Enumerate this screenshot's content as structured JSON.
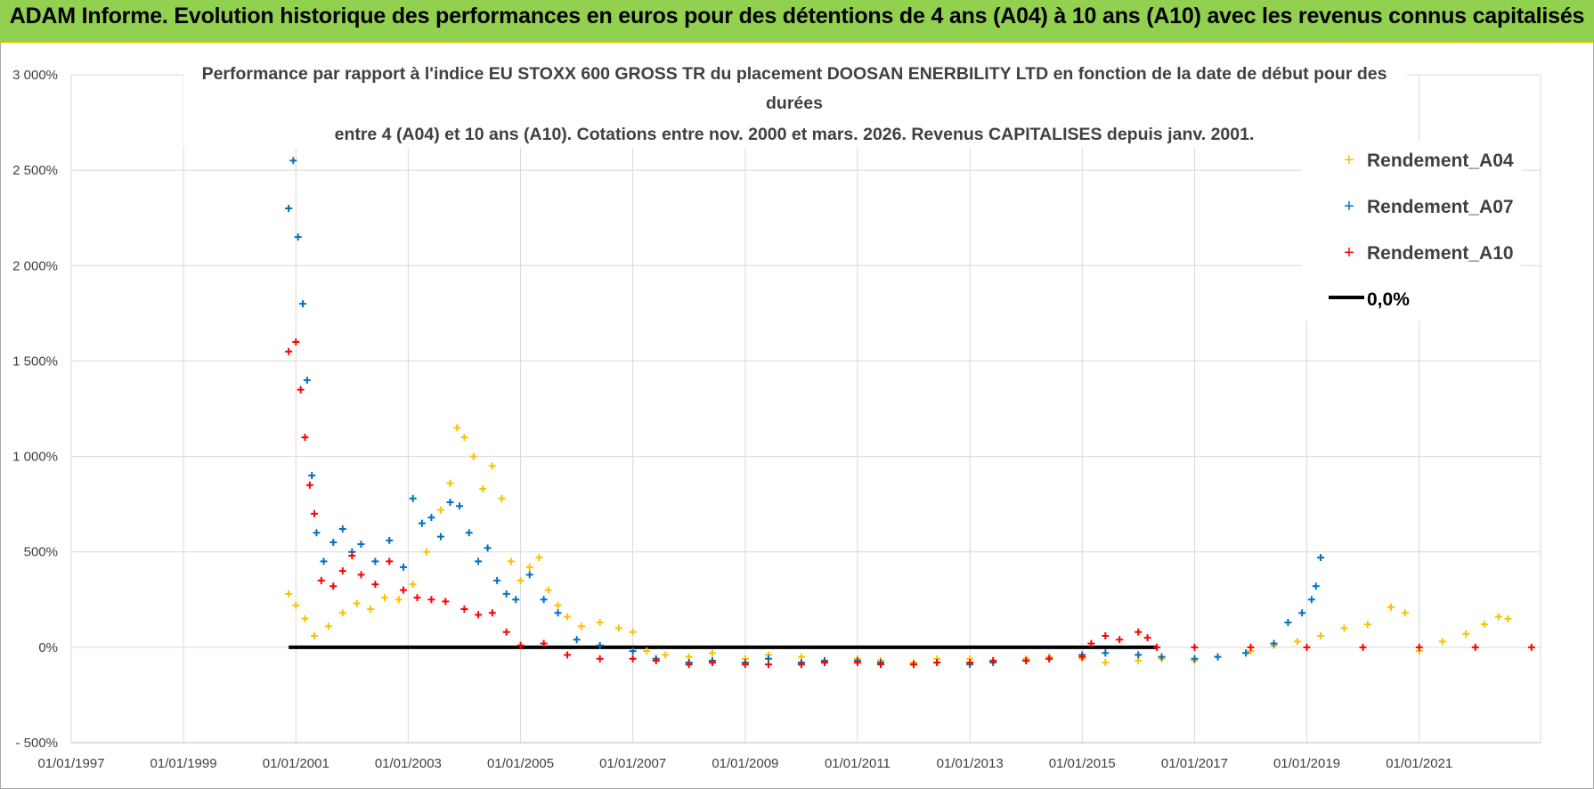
{
  "header": {
    "title": "ADAM Informe. Evolution historique des performances en euros pour des détentions de 4 ans (A04) à 10 ans (A10) avec les revenus connus capitalisés",
    "bg_color": "#92d050"
  },
  "chart_data": {
    "type": "scatter",
    "title_lines": [
      "Performance par rapport à l'indice EU STOXX 600 GROSS TR  du placement DOOSAN ENERBILITY LTD en fonction de la date de début pour des",
      "durées",
      "entre 4 (A04) et 10 ans (A10).  Cotations entre nov. 2000 et mars. 2026. Revenus CAPITALISES depuis janv. 2001."
    ],
    "xlabel": "",
    "ylabel": "",
    "x_ticks": [
      "01/01/1997",
      "01/01/1999",
      "01/01/2001",
      "01/01/2003",
      "01/01/2005",
      "01/01/2007",
      "01/01/2009",
      "01/01/2011",
      "01/01/2013",
      "01/01/2015",
      "01/01/2017",
      "01/01/2019",
      "01/01/2021"
    ],
    "xlim": [
      "1997-01-01",
      "2023-03-01"
    ],
    "y_ticks": [
      "3 000%",
      "2 500%",
      "2 000%",
      "1 500%",
      "1 000%",
      "500%",
      "0%",
      "- 500%"
    ],
    "ylim": [
      -500,
      3000
    ],
    "grid": true,
    "legend_position": "top-right",
    "series": [
      {
        "name": "Rendement_A04",
        "color": "#ffc000",
        "marker": "plus",
        "points": [
          [
            "2000-11-15",
            280
          ],
          [
            "2001-01-01",
            220
          ],
          [
            "2001-03-01",
            150
          ],
          [
            "2001-05-01",
            60
          ],
          [
            "2001-08-01",
            110
          ],
          [
            "2001-11-01",
            180
          ],
          [
            "2002-02-01",
            230
          ],
          [
            "2002-05-01",
            200
          ],
          [
            "2002-08-01",
            260
          ],
          [
            "2002-11-01",
            250
          ],
          [
            "2003-02-01",
            330
          ],
          [
            "2003-05-01",
            500
          ],
          [
            "2003-08-01",
            720
          ],
          [
            "2003-10-01",
            860
          ],
          [
            "2003-11-15",
            1150
          ],
          [
            "2004-01-01",
            1100
          ],
          [
            "2004-03-01",
            1000
          ],
          [
            "2004-05-01",
            830
          ],
          [
            "2004-07-01",
            950
          ],
          [
            "2004-09-01",
            780
          ],
          [
            "2004-11-01",
            450
          ],
          [
            "2005-01-01",
            350
          ],
          [
            "2005-03-01",
            420
          ],
          [
            "2005-05-01",
            470
          ],
          [
            "2005-07-01",
            300
          ],
          [
            "2005-09-01",
            220
          ],
          [
            "2005-11-01",
            160
          ],
          [
            "2006-02-01",
            110
          ],
          [
            "2006-06-01",
            130
          ],
          [
            "2006-10-01",
            100
          ],
          [
            "2007-01-01",
            80
          ],
          [
            "2007-04-01",
            -20
          ],
          [
            "2007-08-01",
            -40
          ],
          [
            "2008-01-01",
            -50
          ],
          [
            "2008-06-01",
            -30
          ],
          [
            "2009-01-01",
            -60
          ],
          [
            "2009-06-01",
            -40
          ],
          [
            "2010-01-01",
            -50
          ],
          [
            "2010-06-01",
            -70
          ],
          [
            "2011-01-01",
            -60
          ],
          [
            "2011-06-01",
            -70
          ],
          [
            "2012-01-01",
            -80
          ],
          [
            "2012-06-01",
            -60
          ],
          [
            "2013-01-01",
            -60
          ],
          [
            "2013-06-01",
            -70
          ],
          [
            "2014-01-01",
            -60
          ],
          [
            "2014-06-01",
            -50
          ],
          [
            "2015-01-01",
            -60
          ],
          [
            "2015-06-01",
            -80
          ],
          [
            "2016-01-01",
            -70
          ],
          [
            "2016-06-01",
            -60
          ],
          [
            "2017-01-01",
            -70
          ],
          [
            "2017-06-01",
            -50
          ],
          [
            "2018-01-01",
            -20
          ],
          [
            "2018-06-01",
            10
          ],
          [
            "2018-11-01",
            30
          ],
          [
            "2019-04-01",
            60
          ],
          [
            "2019-09-01",
            100
          ],
          [
            "2020-02-01",
            120
          ],
          [
            "2020-07-01",
            210
          ],
          [
            "2020-10-01",
            180
          ],
          [
            "2021-01-01",
            -20
          ],
          [
            "2021-06-01",
            30
          ],
          [
            "2021-11-01",
            70
          ],
          [
            "2022-03-01",
            120
          ],
          [
            "2022-06-01",
            160
          ],
          [
            "2022-08-01",
            150
          ]
        ]
      },
      {
        "name": "Rendement_A07",
        "color": "#0070c0",
        "marker": "plus",
        "points": [
          [
            "2000-11-15",
            2300
          ],
          [
            "2000-12-15",
            2550
          ],
          [
            "2001-01-15",
            2150
          ],
          [
            "2001-02-15",
            1800
          ],
          [
            "2001-03-15",
            1400
          ],
          [
            "2001-04-15",
            900
          ],
          [
            "2001-05-15",
            600
          ],
          [
            "2001-07-01",
            450
          ],
          [
            "2001-09-01",
            550
          ],
          [
            "2001-11-01",
            620
          ],
          [
            "2002-01-01",
            500
          ],
          [
            "2002-03-01",
            540
          ],
          [
            "2002-06-01",
            450
          ],
          [
            "2002-09-01",
            560
          ],
          [
            "2002-12-01",
            420
          ],
          [
            "2003-02-01",
            780
          ],
          [
            "2003-04-01",
            650
          ],
          [
            "2003-06-01",
            680
          ],
          [
            "2003-08-01",
            580
          ],
          [
            "2003-10-01",
            760
          ],
          [
            "2003-12-01",
            740
          ],
          [
            "2004-02-01",
            600
          ],
          [
            "2004-04-01",
            450
          ],
          [
            "2004-06-01",
            520
          ],
          [
            "2004-08-01",
            350
          ],
          [
            "2004-10-01",
            280
          ],
          [
            "2004-12-01",
            250
          ],
          [
            "2005-03-01",
            380
          ],
          [
            "2005-06-01",
            250
          ],
          [
            "2005-09-01",
            180
          ],
          [
            "2006-01-01",
            40
          ],
          [
            "2006-06-01",
            10
          ],
          [
            "2007-01-01",
            -20
          ],
          [
            "2007-06-01",
            -60
          ],
          [
            "2008-01-01",
            -80
          ],
          [
            "2008-06-01",
            -70
          ],
          [
            "2009-01-01",
            -80
          ],
          [
            "2009-06-01",
            -60
          ],
          [
            "2010-01-01",
            -80
          ],
          [
            "2010-06-01",
            -70
          ],
          [
            "2011-01-01",
            -70
          ],
          [
            "2011-06-01",
            -80
          ],
          [
            "2012-01-01",
            -90
          ],
          [
            "2012-06-01",
            -80
          ],
          [
            "2013-01-01",
            -90
          ],
          [
            "2013-06-01",
            -80
          ],
          [
            "2014-01-01",
            -70
          ],
          [
            "2014-06-01",
            -60
          ],
          [
            "2015-01-01",
            -40
          ],
          [
            "2015-06-01",
            -30
          ],
          [
            "2016-01-01",
            -40
          ],
          [
            "2016-06-01",
            -50
          ],
          [
            "2017-01-01",
            -60
          ],
          [
            "2017-06-01",
            -50
          ],
          [
            "2017-12-01",
            -30
          ],
          [
            "2018-06-01",
            20
          ],
          [
            "2018-09-01",
            130
          ],
          [
            "2018-12-01",
            180
          ],
          [
            "2019-02-01",
            250
          ],
          [
            "2019-03-01",
            320
          ],
          [
            "2019-04-01",
            470
          ]
        ]
      },
      {
        "name": "Rendement_A10",
        "color": "#ff0000",
        "marker": "plus",
        "points": [
          [
            "2000-11-15",
            1550
          ],
          [
            "2001-01-01",
            1600
          ],
          [
            "2001-02-01",
            1350
          ],
          [
            "2001-03-01",
            1100
          ],
          [
            "2001-04-01",
            850
          ],
          [
            "2001-05-01",
            700
          ],
          [
            "2001-06-15",
            350
          ],
          [
            "2001-09-01",
            320
          ],
          [
            "2001-11-01",
            400
          ],
          [
            "2002-01-01",
            480
          ],
          [
            "2002-03-01",
            380
          ],
          [
            "2002-06-01",
            330
          ],
          [
            "2002-09-01",
            450
          ],
          [
            "2002-12-01",
            300
          ],
          [
            "2003-03-01",
            260
          ],
          [
            "2003-06-01",
            250
          ],
          [
            "2003-09-01",
            240
          ],
          [
            "2004-01-01",
            200
          ],
          [
            "2004-04-01",
            170
          ],
          [
            "2004-07-01",
            180
          ],
          [
            "2004-10-01",
            80
          ],
          [
            "2005-01-01",
            10
          ],
          [
            "2005-06-01",
            20
          ],
          [
            "2005-11-01",
            -40
          ],
          [
            "2006-06-01",
            -60
          ],
          [
            "2007-01-01",
            -60
          ],
          [
            "2007-06-01",
            -70
          ],
          [
            "2008-01-01",
            -90
          ],
          [
            "2008-06-01",
            -80
          ],
          [
            "2009-01-01",
            -90
          ],
          [
            "2009-06-01",
            -90
          ],
          [
            "2010-01-01",
            -90
          ],
          [
            "2010-06-01",
            -80
          ],
          [
            "2011-01-01",
            -80
          ],
          [
            "2011-06-01",
            -90
          ],
          [
            "2012-01-01",
            -90
          ],
          [
            "2012-06-01",
            -80
          ],
          [
            "2013-01-01",
            -80
          ],
          [
            "2013-06-01",
            -70
          ],
          [
            "2014-01-01",
            -70
          ],
          [
            "2014-06-01",
            -60
          ],
          [
            "2015-01-01",
            -50
          ],
          [
            "2015-03-01",
            20
          ],
          [
            "2015-06-01",
            60
          ],
          [
            "2015-09-01",
            40
          ],
          [
            "2016-01-01",
            80
          ],
          [
            "2016-03-01",
            50
          ],
          [
            "2016-05-01",
            0
          ],
          [
            "2017-01-01",
            0
          ],
          [
            "2018-01-01",
            0
          ],
          [
            "2019-01-01",
            0
          ],
          [
            "2020-01-01",
            0
          ],
          [
            "2021-01-01",
            0
          ],
          [
            "2022-01-01",
            0
          ],
          [
            "2023-01-01",
            0
          ]
        ]
      }
    ],
    "reference_line": {
      "name": "0,0%",
      "color": "#000000",
      "y": 0,
      "x_start": "2000-11-15",
      "x_end": "2016-05-01"
    }
  }
}
